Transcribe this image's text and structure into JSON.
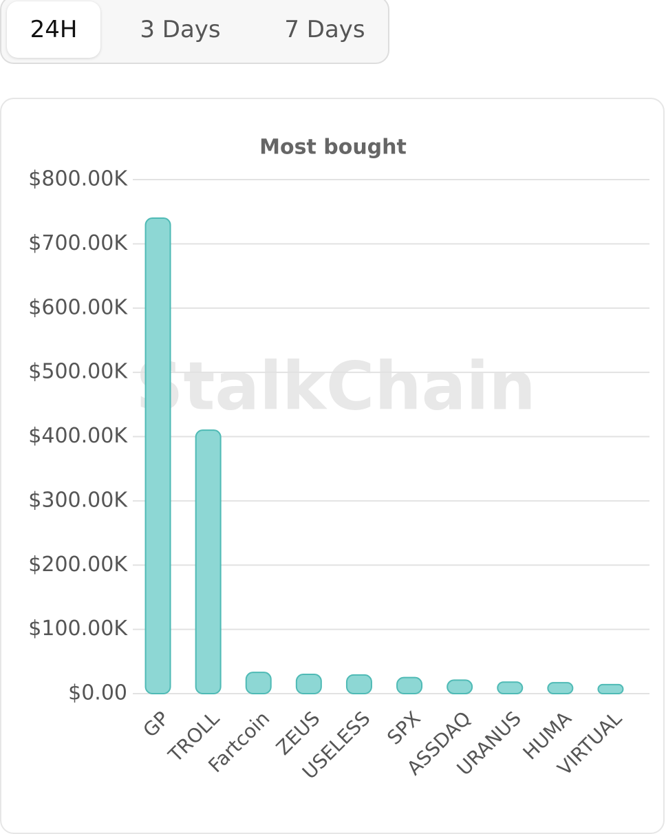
{
  "tabs": [
    "24H",
    "3 Days",
    "7 Days"
  ],
  "watermark": "StalkChain",
  "chart_data": {
    "type": "bar",
    "title": "Most bought",
    "categories": [
      "GP",
      "TROLL",
      "Fartcoin",
      "ZEUS",
      "USELESS",
      "SPX",
      "ASSDAQ",
      "URANUS",
      "HUMA",
      "VIRTUAL"
    ],
    "values": [
      740000,
      410000,
      33000,
      30000,
      29000,
      25000,
      21000,
      18000,
      17000,
      14000
    ],
    "color": "#8dd7d4",
    "ylim": [
      0,
      800000
    ],
    "yticks": [
      {
        "value": 0,
        "label": "$0.00"
      },
      {
        "value": 100000,
        "label": "$100.00K"
      },
      {
        "value": 200000,
        "label": "$200.00K"
      },
      {
        "value": 300000,
        "label": "$300.00K"
      },
      {
        "value": 400000,
        "label": "$400.00K"
      },
      {
        "value": 500000,
        "label": "$500.00K"
      },
      {
        "value": 600000,
        "label": "$600.00K"
      },
      {
        "value": 700000,
        "label": "$700.00K"
      },
      {
        "value": 800000,
        "label": "$800.00K"
      }
    ],
    "grid": true
  }
}
